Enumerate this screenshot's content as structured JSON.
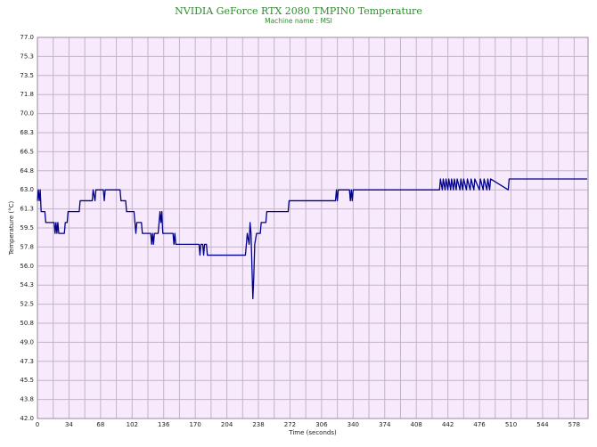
{
  "chart_data": {
    "type": "line",
    "title": "NVIDIA GeForce RTX 2080 TMPIN0 Temperature",
    "subtitle": "Machine name : MSI",
    "x_label": "Time (seconds)",
    "y_label": "Temperature (°C)",
    "color": "#00008b",
    "grid": true,
    "xlim": [
      0,
      593
    ],
    "ylim": [
      42,
      77
    ],
    "xticks": [
      0,
      34,
      68,
      102,
      136,
      170,
      204,
      238,
      272,
      306,
      340,
      374,
      408,
      442,
      476,
      510,
      544,
      578
    ],
    "x_minor_ticks": [
      17,
      51,
      85,
      119,
      153,
      187,
      221,
      255,
      289,
      323,
      357,
      391,
      425,
      459,
      493,
      527,
      561
    ],
    "yticks": [
      {
        "value": 42,
        "label": "42.0"
      },
      {
        "value": 43.75,
        "label": "43.8"
      },
      45.5,
      {
        "value": 47.25,
        "label": "47.3"
      },
      {
        "value": 49,
        "label": "49.0"
      },
      {
        "value": 50.75,
        "label": "50.8"
      },
      52.5,
      {
        "value": 54.25,
        "label": "54.3"
      },
      {
        "value": 56,
        "label": "56.0"
      },
      {
        "value": 57.75,
        "label": "57.8"
      },
      59.5,
      {
        "value": 61.25,
        "label": "61.3"
      },
      {
        "value": 63,
        "label": "63.0"
      },
      {
        "value": 64.75,
        "label": "64.8"
      },
      66.5,
      {
        "value": 68.25,
        "label": "68.3"
      },
      {
        "value": 70,
        "label": "70.0"
      },
      {
        "value": 71.75,
        "label": "71.8"
      },
      73.5,
      {
        "value": 75.25,
        "label": "75.3"
      },
      {
        "value": 77,
        "label": "77.0"
      }
    ],
    "x": [
      0,
      1,
      2,
      3,
      4,
      8,
      9,
      18,
      19,
      20,
      21,
      22,
      23,
      29,
      30,
      32,
      33,
      45,
      46,
      59,
      60,
      62,
      63,
      71,
      72,
      73,
      89,
      90,
      95,
      96,
      104,
      105,
      106,
      107,
      112,
      113,
      122,
      123,
      124,
      125,
      126,
      130,
      131,
      132,
      133,
      134,
      135,
      146,
      147,
      148,
      149,
      174,
      175,
      176,
      178,
      179,
      180,
      182,
      183,
      224,
      225,
      226,
      228,
      229,
      230,
      231,
      232,
      233,
      234,
      236,
      240,
      241,
      246,
      247,
      270,
      271,
      321,
      322,
      323,
      324,
      336,
      337,
      338,
      339,
      340,
      433,
      434,
      436,
      437,
      439,
      440,
      442,
      443,
      445,
      446,
      448,
      449,
      451,
      452,
      455,
      456,
      458,
      459,
      462,
      463,
      466,
      467,
      470,
      471,
      476,
      477,
      480,
      481,
      484,
      485,
      487,
      488,
      507,
      508,
      592
    ],
    "values": [
      62,
      63,
      62,
      63,
      61,
      61,
      60,
      60,
      59,
      60,
      59,
      60,
      59,
      59,
      60,
      60,
      61,
      61,
      62,
      62,
      63,
      62,
      63,
      63,
      62,
      63,
      63,
      62,
      62,
      61,
      61,
      60,
      59,
      60,
      60,
      59,
      59,
      58,
      59,
      58,
      59,
      59,
      60,
      61,
      60,
      61,
      59,
      59,
      58,
      59,
      58,
      58,
      57,
      58,
      58,
      57,
      58,
      58,
      57,
      57,
      58,
      59,
      58,
      60,
      59,
      56,
      53,
      55,
      58,
      59,
      59,
      60,
      60,
      61,
      61,
      62,
      62,
      63,
      62,
      63,
      63,
      62,
      63,
      62,
      63,
      63,
      64,
      63,
      64,
      63,
      64,
      63,
      64,
      63,
      64,
      63,
      64,
      63,
      64,
      63,
      64,
      63,
      64,
      63,
      64,
      63,
      64,
      63,
      64,
      63,
      64,
      63,
      64,
      63,
      64,
      63,
      64,
      63,
      64,
      64
    ]
  }
}
